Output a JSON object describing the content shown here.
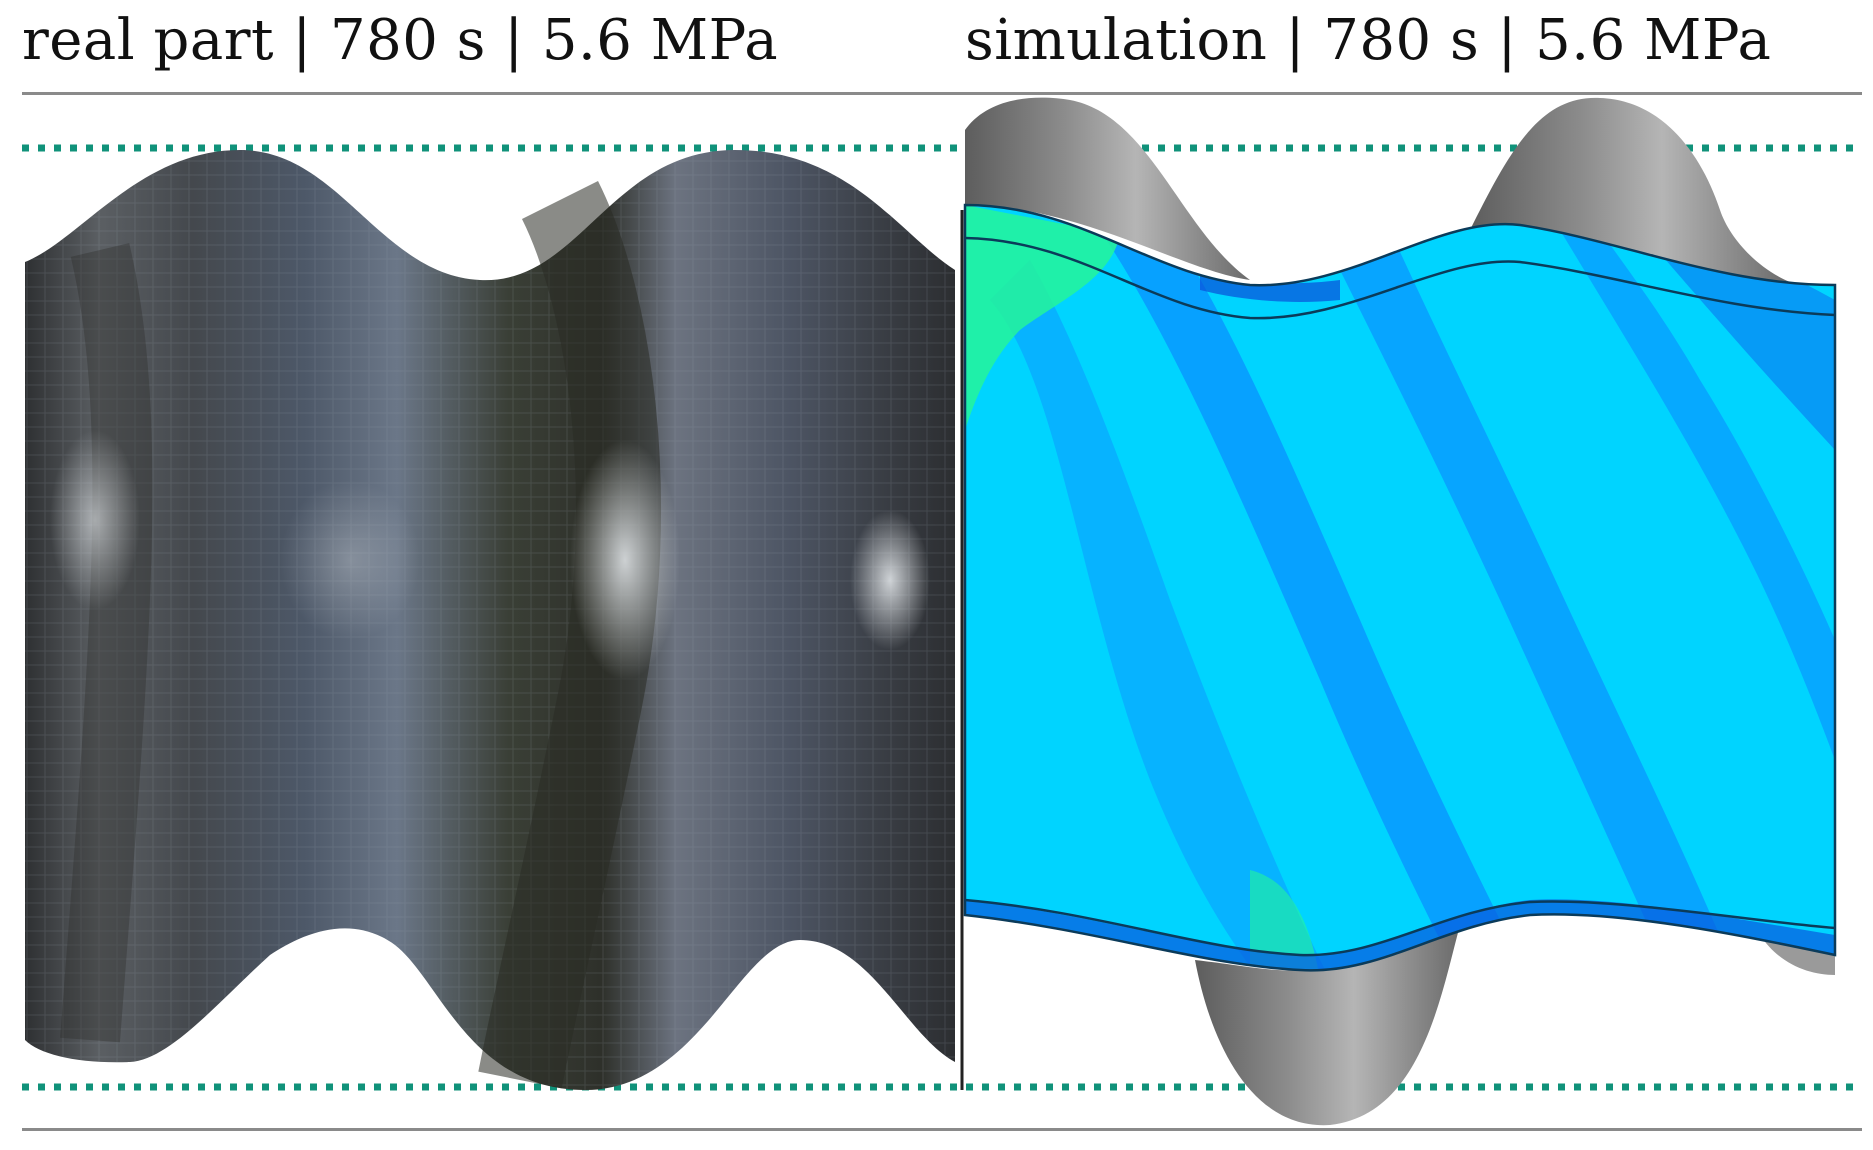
{
  "left_panel": {
    "caption": "real part | 780 s | 5.6 MPa",
    "description_icon": "corrugated-metal-part-photo"
  },
  "right_panel": {
    "caption": "simulation | 780 s | 5.6 MPa",
    "description_icon": "fem-contour-plot"
  },
  "colors": {
    "guide_dots": "#10927a",
    "rule": "#8a8a8a",
    "metal_dark": "#3b3e44",
    "fem_cyan": "#00e5ff",
    "fem_blue": "#0a8cff",
    "fem_green": "#25f59a",
    "die_grey": "#7a7a7a"
  }
}
